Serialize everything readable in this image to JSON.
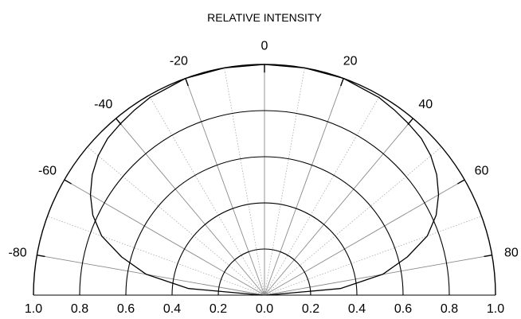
{
  "chart_data": {
    "type": "polar",
    "title": "RELATIVE INTENSITY",
    "angle_ticks": [
      -80,
      -60,
      -40,
      -20,
      0,
      20,
      40,
      60,
      80
    ],
    "angle_tick_labels": [
      "-80",
      "-60",
      "-40",
      "-20",
      "0",
      "20",
      "40",
      "60",
      "80"
    ],
    "radial_ticks_left": [
      "1.0",
      "0.8",
      "0.6",
      "0.4",
      "0.2"
    ],
    "radial_center_label": "0.0",
    "radial_ticks_right": [
      "0.2",
      "0.4",
      "0.6",
      "0.8",
      "1.0"
    ],
    "radial_circles": [
      0.2,
      0.4,
      0.6,
      0.8,
      1.0
    ],
    "angle_range": [
      -90,
      90
    ],
    "radial_range": [
      0,
      1.0
    ],
    "series": [
      {
        "points": [
          {
            "angle": -90,
            "r": 0.01
          },
          {
            "angle": -85,
            "r": 0.33
          },
          {
            "angle": -80,
            "r": 0.52
          },
          {
            "angle": -75,
            "r": 0.64
          },
          {
            "angle": -70,
            "r": 0.75
          },
          {
            "angle": -65,
            "r": 0.82
          },
          {
            "angle": -60,
            "r": 0.87
          },
          {
            "angle": -55,
            "r": 0.91
          },
          {
            "angle": -50,
            "r": 0.94
          },
          {
            "angle": -45,
            "r": 0.96
          },
          {
            "angle": -40,
            "r": 0.97
          },
          {
            "angle": -35,
            "r": 0.98
          },
          {
            "angle": -30,
            "r": 0.99
          },
          {
            "angle": -20,
            "r": 1.0
          },
          {
            "angle": -10,
            "r": 1.0
          },
          {
            "angle": 0,
            "r": 1.0
          },
          {
            "angle": 10,
            "r": 1.0
          },
          {
            "angle": 20,
            "r": 1.0
          },
          {
            "angle": 30,
            "r": 0.99
          },
          {
            "angle": 35,
            "r": 0.98
          },
          {
            "angle": 40,
            "r": 0.97
          },
          {
            "angle": 45,
            "r": 0.96
          },
          {
            "angle": 50,
            "r": 0.94
          },
          {
            "angle": 55,
            "r": 0.91
          },
          {
            "angle": 60,
            "r": 0.87
          },
          {
            "angle": 65,
            "r": 0.82
          },
          {
            "angle": 70,
            "r": 0.75
          },
          {
            "angle": 75,
            "r": 0.64
          },
          {
            "angle": 80,
            "r": 0.52
          },
          {
            "angle": 85,
            "r": 0.33
          },
          {
            "angle": 90,
            "r": 0.01
          }
        ]
      }
    ]
  }
}
